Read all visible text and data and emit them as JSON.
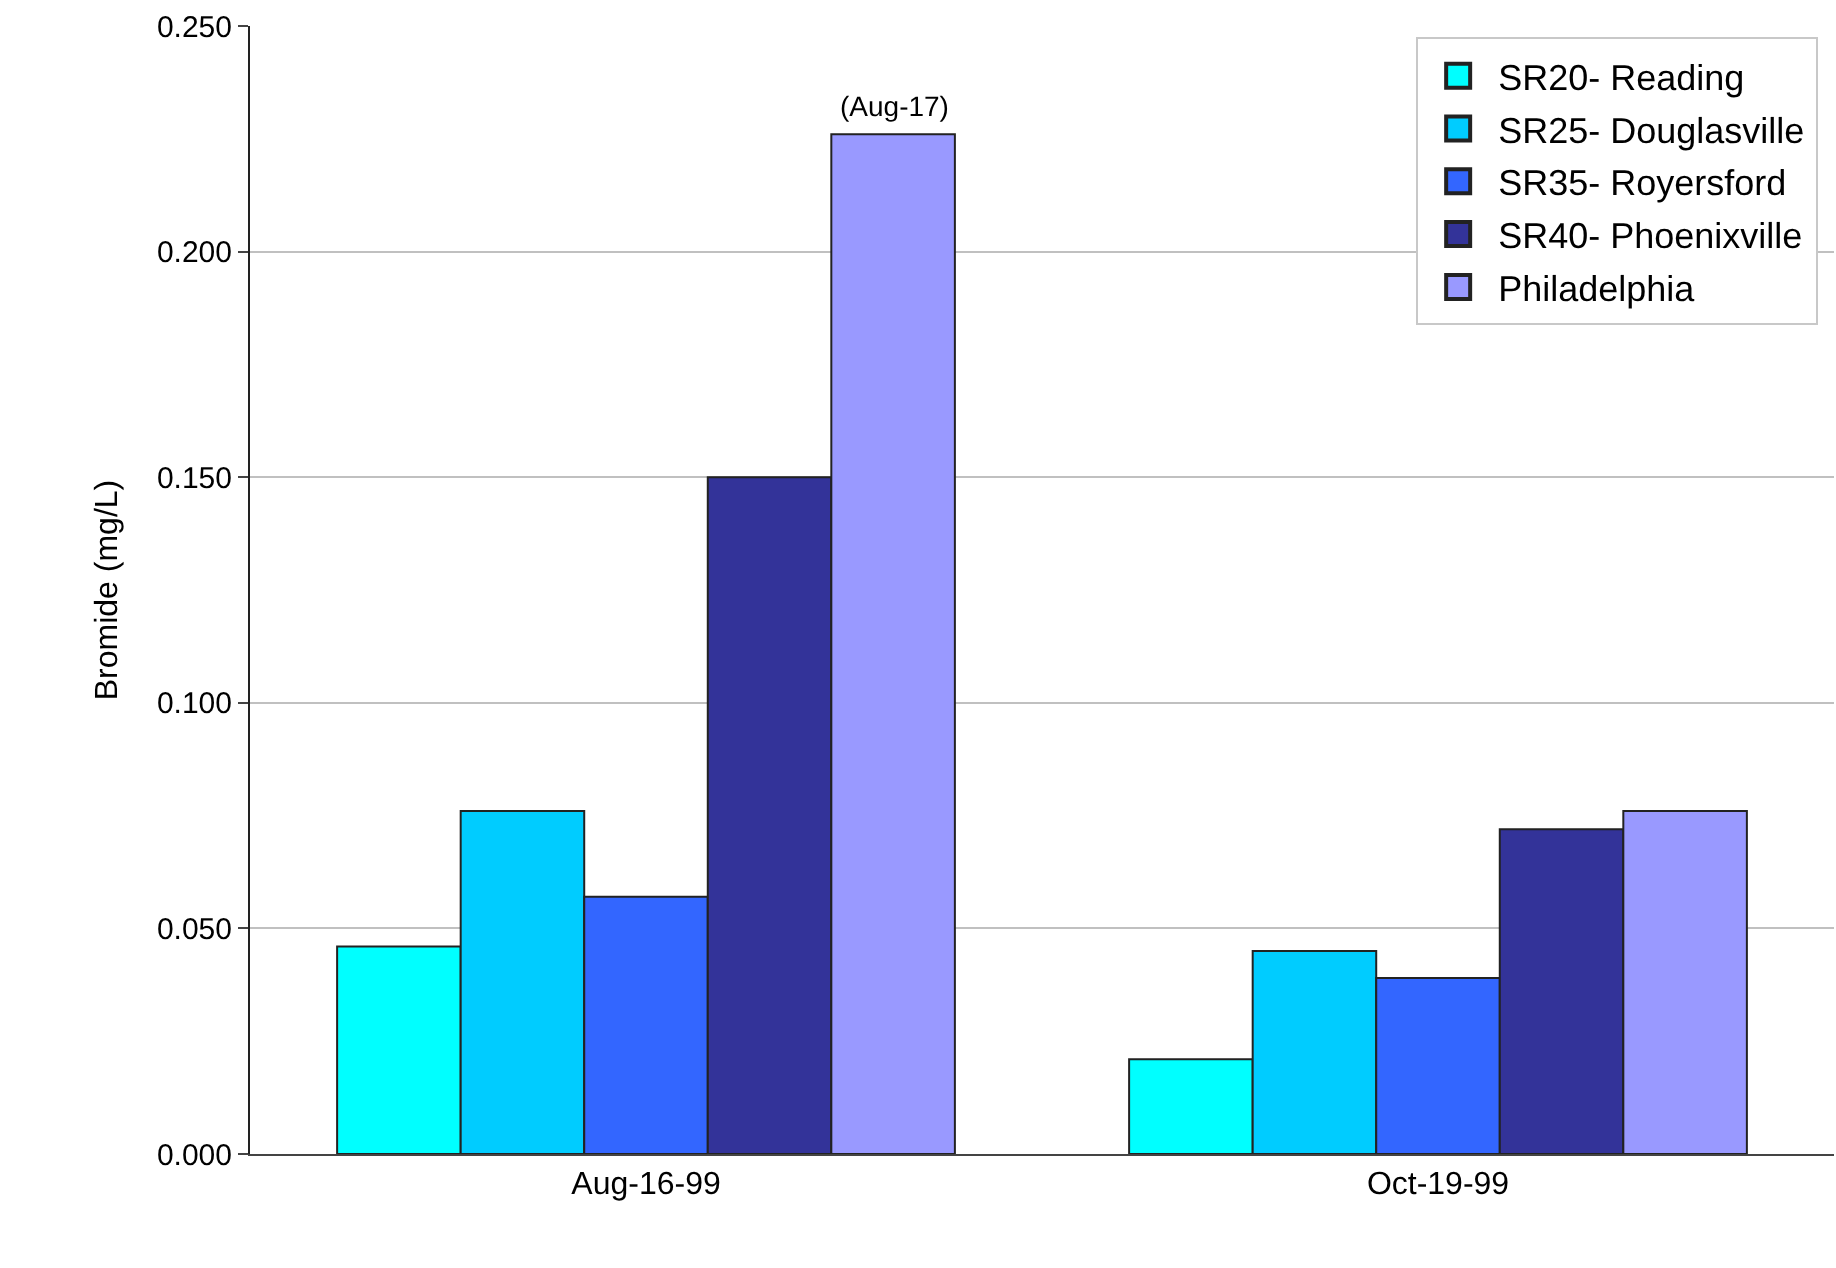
{
  "chart_data": {
    "type": "bar",
    "ylabel": "Bromide (mg/L)",
    "categories": [
      "Aug-16-99",
      "Oct-19-99"
    ],
    "series": [
      {
        "name": "SR20- Reading",
        "color": "#00ffff",
        "values": [
          0.046,
          0.021
        ]
      },
      {
        "name": "SR25- Douglasville",
        "color": "#00ccff",
        "values": [
          0.076,
          0.045
        ]
      },
      {
        "name": "SR35- Royersford",
        "color": "#3366ff",
        "values": [
          0.057,
          0.039
        ]
      },
      {
        "name": "SR40- Phoenixville",
        "color": "#333399",
        "values": [
          0.15,
          0.072
        ]
      },
      {
        "name": "Philadelphia",
        "color": "#9999ff",
        "values": [
          0.226,
          0.076
        ]
      }
    ],
    "annotations": [
      "(Aug-17)"
    ],
    "ylim": [
      0,
      0.25
    ],
    "yticks": [
      {
        "value": 0,
        "label": "0.000"
      },
      {
        "value": 0.05,
        "label": "0.050"
      },
      {
        "value": 0.1,
        "label": "0.100"
      },
      {
        "value": 0.15,
        "label": "0.150"
      },
      {
        "value": 0.2,
        "label": "0.200"
      },
      {
        "value": 0.25,
        "label": "0.250"
      }
    ],
    "grid": "y",
    "legend": "top right"
  }
}
